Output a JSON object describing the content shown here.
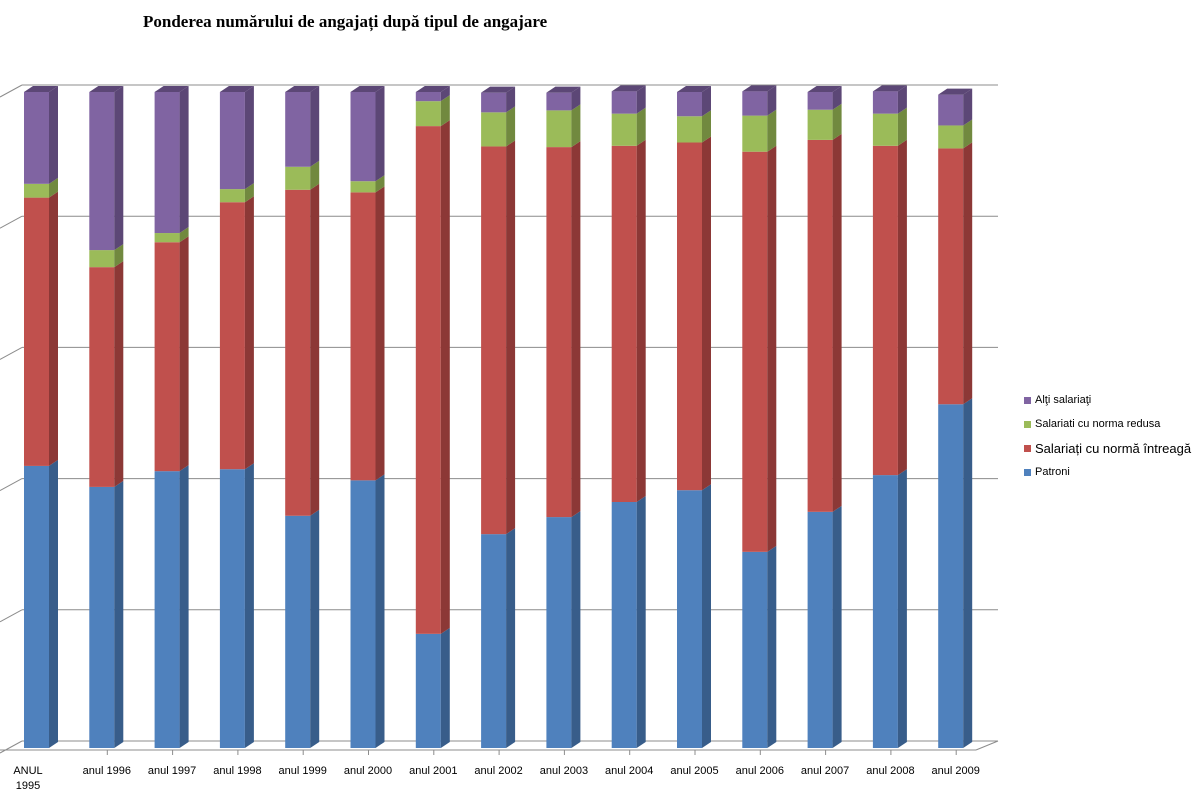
{
  "chart_data": {
    "type": "bar",
    "stacked": true,
    "normalized": true,
    "style": "3d-column-100-percent-stacked",
    "title": "Ponderea numărului de angajați după tipul de angajare",
    "xlabel": "",
    "ylabel": "",
    "ylim": [
      0,
      100
    ],
    "y_ticks_shown": false,
    "grid": true,
    "legend_position": "right",
    "categories": [
      "ANUL 1995",
      "anul 1996",
      "anul 1997",
      "anul 1998",
      "anul 1999",
      "anul 2000",
      "anul 2001",
      "anul 2002",
      "anul 2003",
      "anul 2004",
      "anul 2005",
      "anul 2006",
      "anul 2007",
      "anul 2008",
      "anul 2009"
    ],
    "category_lines": [
      [
        "ANUL",
        "1995"
      ],
      [
        "anul 1996"
      ],
      [
        "anul 1997"
      ],
      [
        "anul 1998"
      ],
      [
        "anul 1999"
      ],
      [
        "anul 2000"
      ],
      [
        "anul 2001"
      ],
      [
        "anul 2002"
      ],
      [
        "anul 2003"
      ],
      [
        "anul 2004"
      ],
      [
        "anul 2005"
      ],
      [
        "anul 2006"
      ],
      [
        "anul 2007"
      ],
      [
        "anul 2008"
      ],
      [
        "anul 2009"
      ]
    ],
    "series": [
      {
        "name": "Patroni",
        "color": "#4F81BD",
        "side_color": "#385D8A",
        "values": [
          43.0,
          39.8,
          42.2,
          42.5,
          35.4,
          40.8,
          17.4,
          32.6,
          35.2,
          37.5,
          39.3,
          29.9,
          36.0,
          41.6,
          52.4
        ]
      },
      {
        "name": "Salariați cu normă întreagă",
        "color": "#C0504D",
        "side_color": "#8C3836",
        "values": [
          40.9,
          33.5,
          34.9,
          40.7,
          49.7,
          43.9,
          77.4,
          59.1,
          56.4,
          54.3,
          53.0,
          61.0,
          56.7,
          50.2,
          39.0
        ]
      },
      {
        "name": "Salariati cu norma redusa",
        "color": "#9BBB59",
        "side_color": "#71893F",
        "values": [
          2.1,
          2.6,
          1.4,
          2.0,
          3.5,
          1.7,
          3.8,
          5.2,
          5.6,
          4.9,
          4.0,
          5.5,
          4.6,
          4.9,
          3.5
        ]
      },
      {
        "name": "Alţi salariaţi",
        "color": "#8064A2",
        "side_color": "#5C4776",
        "values": [
          14.0,
          24.1,
          21.5,
          14.8,
          11.4,
          13.6,
          1.4,
          3.0,
          2.7,
          3.4,
          3.7,
          3.7,
          2.7,
          3.4,
          4.7
        ]
      }
    ],
    "legend_order": [
      3,
      2,
      1,
      0
    ]
  }
}
